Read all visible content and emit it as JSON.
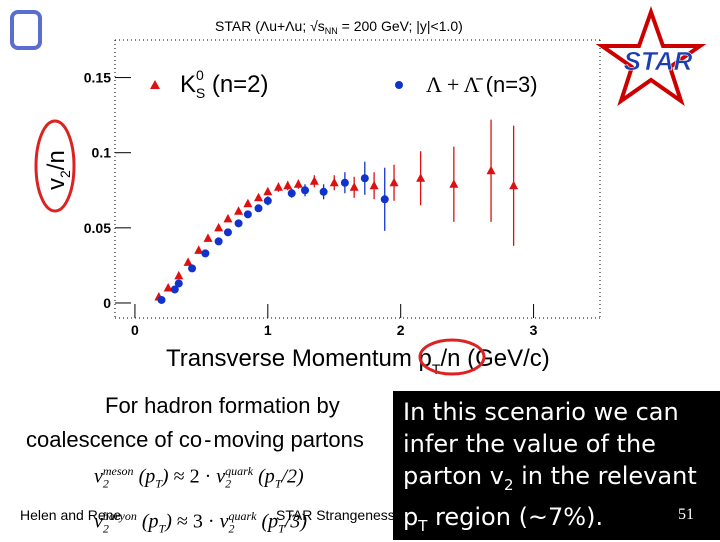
{
  "chart_data": {
    "type": "scatter",
    "title": "STAR (Λu+Λu; √s_NN = 200 GeV; |y|<1.0)",
    "title_parts": {
      "pre": "STAR (",
      "particle": "Λu+Λu",
      "mid": "; √s",
      "sub": "NN",
      "post": " = 200 GeV; |y|<1.0)"
    },
    "xlabel": "Transverse Momentum p_T/n (GeV/c)",
    "xlabel_parts": {
      "main": "Transverse Momentum p",
      "sub": "T",
      "post": "/n (GeV/c)"
    },
    "ylabel": "v2/n",
    "ylabel_parts": {
      "main": "v",
      "sub": "2",
      "post": "/n"
    },
    "xlim": [
      -0.15,
      3.5
    ],
    "ylim": [
      -0.01,
      0.175
    ],
    "xticks": [
      0,
      1,
      2,
      3
    ],
    "xtick_labels": [
      "0",
      "1",
      "2",
      "3"
    ],
    "yticks": [
      0,
      0.05,
      0.1,
      0.15
    ],
    "ytick_labels": [
      "0",
      "0.05",
      "0.1",
      "0.15"
    ],
    "legend_position": "top",
    "series": [
      {
        "name": "K0S (n=2)",
        "legend": {
          "symbol": "K",
          "sup": "0",
          "sub": "S",
          "post": " (n=2)"
        },
        "color": "#dd1111",
        "marker": "triangle",
        "points": [
          {
            "x": 0.18,
            "y": 0.004,
            "err": 0.002
          },
          {
            "x": 0.25,
            "y": 0.01,
            "err": 0.002
          },
          {
            "x": 0.33,
            "y": 0.018,
            "err": 0.002
          },
          {
            "x": 0.4,
            "y": 0.027,
            "err": 0.002
          },
          {
            "x": 0.48,
            "y": 0.035,
            "err": 0.002
          },
          {
            "x": 0.55,
            "y": 0.043,
            "err": 0.002
          },
          {
            "x": 0.63,
            "y": 0.05,
            "err": 0.002
          },
          {
            "x": 0.7,
            "y": 0.056,
            "err": 0.002
          },
          {
            "x": 0.78,
            "y": 0.061,
            "err": 0.002
          },
          {
            "x": 0.85,
            "y": 0.066,
            "err": 0.002
          },
          {
            "x": 0.93,
            "y": 0.07,
            "err": 0.002
          },
          {
            "x": 1.0,
            "y": 0.074,
            "err": 0.002
          },
          {
            "x": 1.08,
            "y": 0.077,
            "err": 0.003
          },
          {
            "x": 1.15,
            "y": 0.078,
            "err": 0.003
          },
          {
            "x": 1.23,
            "y": 0.079,
            "err": 0.003
          },
          {
            "x": 1.35,
            "y": 0.081,
            "err": 0.004
          },
          {
            "x": 1.5,
            "y": 0.08,
            "err": 0.005
          },
          {
            "x": 1.65,
            "y": 0.077,
            "err": 0.007
          },
          {
            "x": 1.8,
            "y": 0.078,
            "err": 0.009
          },
          {
            "x": 1.95,
            "y": 0.08,
            "err": 0.012
          },
          {
            "x": 2.15,
            "y": 0.083,
            "err": 0.018
          },
          {
            "x": 2.4,
            "y": 0.079,
            "err": 0.025
          },
          {
            "x": 2.68,
            "y": 0.088,
            "err": 0.034
          },
          {
            "x": 2.85,
            "y": 0.078,
            "err": 0.04
          }
        ]
      },
      {
        "name": "Λ + Λ̄ (n=3)",
        "legend": {
          "symbol": "Λ + Λ̄",
          "post": " (n=3)"
        },
        "color": "#1133cc",
        "marker": "circle",
        "points": [
          {
            "x": 0.2,
            "y": 0.002,
            "err": 0.002
          },
          {
            "x": 0.3,
            "y": 0.009,
            "err": 0.002
          },
          {
            "x": 0.33,
            "y": 0.013,
            "err": 0.002
          },
          {
            "x": 0.43,
            "y": 0.023,
            "err": 0.002
          },
          {
            "x": 0.53,
            "y": 0.033,
            "err": 0.002
          },
          {
            "x": 0.63,
            "y": 0.041,
            "err": 0.002
          },
          {
            "x": 0.7,
            "y": 0.047,
            "err": 0.002
          },
          {
            "x": 0.78,
            "y": 0.053,
            "err": 0.002
          },
          {
            "x": 0.85,
            "y": 0.059,
            "err": 0.002
          },
          {
            "x": 0.93,
            "y": 0.063,
            "err": 0.002
          },
          {
            "x": 1.0,
            "y": 0.068,
            "err": 0.003
          },
          {
            "x": 1.18,
            "y": 0.073,
            "err": 0.003
          },
          {
            "x": 1.28,
            "y": 0.075,
            "err": 0.004
          },
          {
            "x": 1.42,
            "y": 0.074,
            "err": 0.005
          },
          {
            "x": 1.58,
            "y": 0.08,
            "err": 0.007
          },
          {
            "x": 1.73,
            "y": 0.083,
            "err": 0.011
          },
          {
            "x": 1.88,
            "y": 0.069,
            "err": 0.021
          }
        ]
      }
    ]
  },
  "logo": {
    "text": "STAR"
  },
  "explanation": {
    "line1": "For hadron formation by",
    "line2": "coalescence of co",
    "line2_dash": "-",
    "line2_end": "moving partons"
  },
  "formulas": {
    "meson": {
      "v": "v",
      "sub": "2",
      "sup": "meson",
      "arg": "(p",
      "arg_sub": "T",
      "arg_end": ")",
      "approx": "≈",
      "factor": "2 ·",
      "v2": "v",
      "sub2": "2",
      "sup2": "quark",
      "arg2": "(p",
      "arg2_sub": "T",
      "arg2_end": "/2)"
    },
    "baryon": {
      "v": "v",
      "sub": "2",
      "sup": "baryon",
      "arg": "(p",
      "arg_sub": "T",
      "arg_end": ")",
      "approx": "≈",
      "factor": "3 ·",
      "v2": "v",
      "sub2": "2",
      "sup2": "quark",
      "arg2": "(p",
      "arg2_sub": "T",
      "arg2_end": "/3)"
    }
  },
  "callout": {
    "line1": "In this scenario we can",
    "line2": "infer the value of the",
    "line3_pre": "parton v",
    "line3_sub": "2",
    "line3_post": " in the relevant",
    "line4_pre": "p",
    "line4_sub": "T",
    "line4_post": " region (~7%)."
  },
  "footer": {
    "author": "Helen and Rene",
    "center": "STAR Strangeness",
    "page": "51"
  },
  "colors": {
    "kshort": "#dd1111",
    "lambda": "#1133cc",
    "highlight_circle": "#dd2222",
    "bracket": "#5a6ecf",
    "logo_star": "#cc0000",
    "logo_text": "#1a3fb3"
  }
}
